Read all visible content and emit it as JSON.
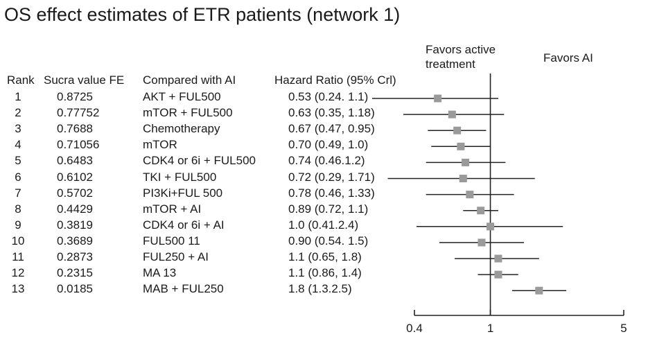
{
  "title": "OS effect estimates of ETR patients (network 1)",
  "favors_left": [
    "Favors active",
    "treatment"
  ],
  "favors_right": "Favors AI",
  "columns": {
    "rank": "Rank",
    "sucra": "Sucra value FE",
    "compared": "Compared with AI",
    "hr": "Hazard Ratio (95% Crl)"
  },
  "rows": [
    {
      "rank": "1",
      "sucra": "0.8725",
      "compared": "AKT + FUL500",
      "hr_text": "0.53 (0.24. 1.1)"
    },
    {
      "rank": "2",
      "sucra": "0.77752",
      "compared": "mTOR + FUL500",
      "hr_text": "0.63 (0.35, 1.18)"
    },
    {
      "rank": "3",
      "sucra": "0.7688",
      "compared": "Chemotherapy",
      "hr_text": "0.67 (0.47, 0.95)"
    },
    {
      "rank": "4",
      "sucra": "0.71056",
      "compared": "mTOR",
      "hr_text": "0.70 (0.49, 1.0)"
    },
    {
      "rank": "5",
      "sucra": "0.6483",
      "compared": "CDK4 or 6i + FUL500",
      "hr_text": "0.74 (0.46.1.2)"
    },
    {
      "rank": "6",
      "sucra": "0.6102",
      "compared": "TKI + FUL500",
      "hr_text": "0.72 (0.29, 1.71)"
    },
    {
      "rank": "7",
      "sucra": "0.5702",
      "compared": "PI3Ki+FUL 500",
      "hr_text": "0.78 (0.46, 1.33)"
    },
    {
      "rank": "8",
      "sucra": "0.4429",
      "compared": "mTOR + AI",
      "hr_text": "0.89 (0.72, 1.1)"
    },
    {
      "rank": "9",
      "sucra": "0.3819",
      "compared": "CDK4 or 6i + AI",
      "hr_text": "1.0 (0.41.2.4)"
    },
    {
      "rank": "10",
      "sucra": "0.3689",
      "compared": "FUL500 11",
      "hr_text": "0.90 (0.54. 1.5)"
    },
    {
      "rank": "11",
      "sucra": "0.2873",
      "compared": "FUL250 + AI",
      "hr_text": "1.1 (0.65, 1.8)"
    },
    {
      "rank": "12",
      "sucra": "0.2315",
      "compared": "MA 13",
      "hr_text": "1.1 (0.86, 1.4)"
    },
    {
      "rank": "13",
      "sucra": "0.0185",
      "compared": "MAB + FUL250",
      "hr_text": "1.8 (1.3.2.5)"
    }
  ],
  "colors": {
    "text": "#1a1a1a",
    "line": "#222222",
    "marker": "#9a9a9a"
  },
  "chart_data": {
    "type": "forest",
    "scale": "log",
    "xlim": [
      0.4,
      5
    ],
    "xticks": [
      0.4,
      1,
      5
    ],
    "xtick_labels": [
      "0.4",
      "1",
      "5"
    ],
    "reference": 1,
    "points": [
      {
        "est": 0.53,
        "lo": 0.24,
        "hi": 1.1
      },
      {
        "est": 0.63,
        "lo": 0.35,
        "hi": 1.18
      },
      {
        "est": 0.67,
        "lo": 0.47,
        "hi": 0.95
      },
      {
        "est": 0.7,
        "lo": 0.49,
        "hi": 1.0
      },
      {
        "est": 0.74,
        "lo": 0.46,
        "hi": 1.2
      },
      {
        "est": 0.72,
        "lo": 0.29,
        "hi": 1.71
      },
      {
        "est": 0.78,
        "lo": 0.46,
        "hi": 1.33
      },
      {
        "est": 0.89,
        "lo": 0.72,
        "hi": 1.1
      },
      {
        "est": 1.0,
        "lo": 0.41,
        "hi": 2.4
      },
      {
        "est": 0.9,
        "lo": 0.54,
        "hi": 1.5
      },
      {
        "est": 1.1,
        "lo": 0.65,
        "hi": 1.8
      },
      {
        "est": 1.1,
        "lo": 0.86,
        "hi": 1.4
      },
      {
        "est": 1.8,
        "lo": 1.3,
        "hi": 2.5
      }
    ]
  }
}
